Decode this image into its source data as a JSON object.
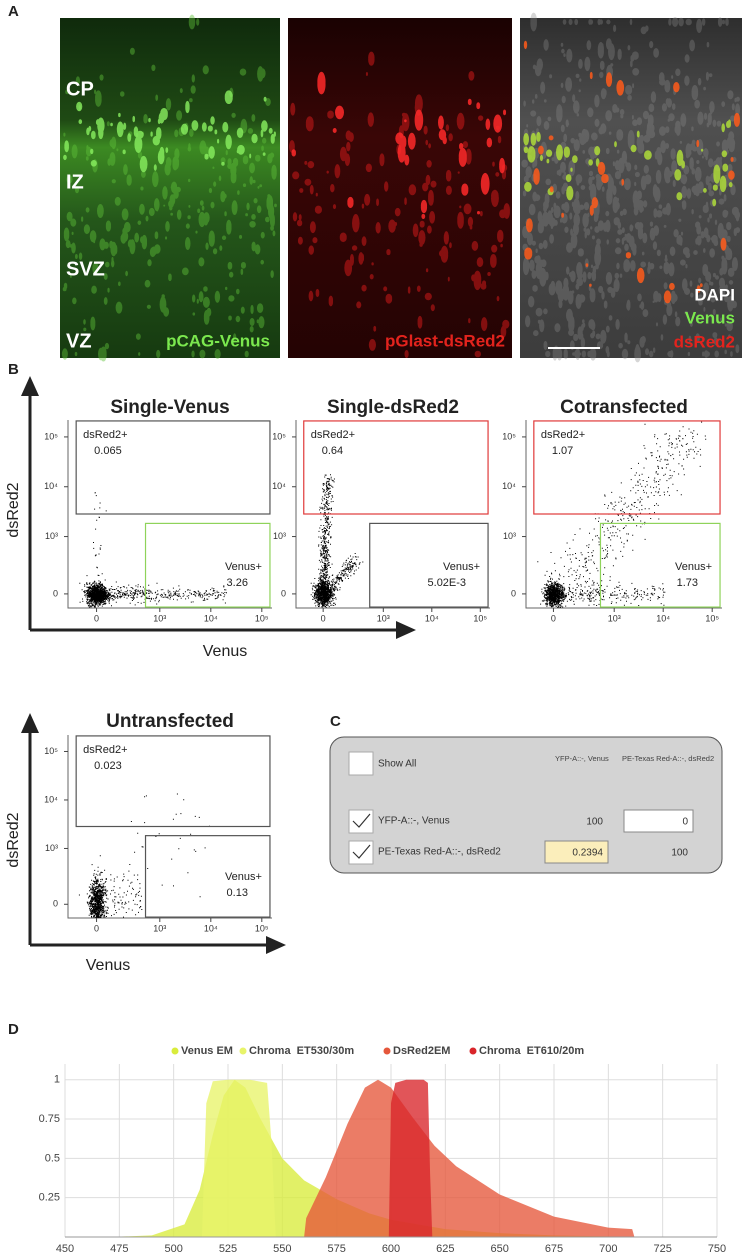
{
  "panel_a": {
    "label": "A",
    "regions": [
      "CP",
      "IZ",
      "SVZ",
      "VZ"
    ],
    "channels": [
      {
        "name": "pCAG-Venus",
        "color": "#7be84e"
      },
      {
        "name": "pGlast-dsRed2",
        "color": "#e3231d"
      }
    ],
    "merge_legend": [
      {
        "name": "DAPI",
        "color": "#ffffff"
      },
      {
        "name": "Venus",
        "color": "#7be84e"
      },
      {
        "name": "dsRed2",
        "color": "#e3231d"
      }
    ]
  },
  "panel_b": {
    "label": "B",
    "x_label": "Venus",
    "y_label": "dsRed2",
    "xticks": [
      0,
      {
        "value": 1000,
        "label": "10³"
      },
      {
        "value": 10000,
        "label": "10⁴"
      },
      {
        "value": 100000,
        "label": "10⁵"
      }
    ],
    "yticks": [
      0,
      {
        "value": 1000,
        "label": "10³"
      },
      {
        "value": 10000,
        "label": "10⁴"
      },
      {
        "value": 100000,
        "label": "10⁵"
      }
    ],
    "plots": [
      {
        "title": "Single-Venus",
        "gates": [
          {
            "name": "dsRed2+",
            "value": 0.065,
            "color": "#555555"
          },
          {
            "name": "Venus+",
            "value": 3.26,
            "color": "#8fd35a"
          }
        ]
      },
      {
        "title": "Single-dsRed2",
        "gates": [
          {
            "name": "dsRed2+",
            "value": 0.64,
            "color": "#e03a3a"
          },
          {
            "name": "Venus+",
            "value": {
              "value": 0.00502,
              "label": "5.02E-3"
            },
            "color": "#555555"
          }
        ]
      },
      {
        "title": "Cotransfected",
        "gates": [
          {
            "name": "dsRed2+",
            "value": 1.07,
            "color": "#e03a3a"
          },
          {
            "name": "Venus+",
            "value": 1.73,
            "color": "#8fd35a"
          }
        ]
      },
      {
        "title": "Untransfected",
        "gates": [
          {
            "name": "dsRed2+",
            "value": 0.023,
            "color": "#555555"
          },
          {
            "name": "Venus+",
            "value": 0.13,
            "color": "#555555"
          }
        ]
      }
    ]
  },
  "panel_c": {
    "label": "C",
    "show_all": "Show All",
    "columns": [
      "YFP-A::-, Venus",
      "PE-Texas Red-A::-, dsRed2"
    ],
    "rows": [
      {
        "name": "YFP-A::-, Venus",
        "values": [
          100,
          0
        ]
      },
      {
        "name": "PE-Texas Red-A::-, dsRed2",
        "values": [
          0.2394,
          100
        ]
      }
    ]
  },
  "chart_data": {
    "type": "area",
    "panel_label": "D",
    "xlim": [
      450,
      750
    ],
    "ylim": [
      0,
      1.1
    ],
    "xticks": [
      450,
      475,
      500,
      525,
      550,
      575,
      600,
      625,
      650,
      675,
      700,
      725,
      750
    ],
    "yticks": [
      0.25,
      0.5,
      0.75,
      1
    ],
    "grid": true,
    "series": [
      {
        "name": "Venus EM",
        "color": "#d9ec3c",
        "x": [
          470,
          490,
          505,
          512,
          518,
          523,
          528,
          533,
          540,
          550,
          560,
          575,
          590,
          600,
          625,
          650,
          675,
          700,
          720
        ],
        "values": [
          0,
          0.01,
          0.08,
          0.3,
          0.65,
          0.9,
          1,
          0.95,
          0.75,
          0.5,
          0.36,
          0.24,
          0.15,
          0.11,
          0.05,
          0.025,
          0.01,
          0.004,
          0
        ]
      },
      {
        "name": "Chroma  ET530/30m",
        "color": "#e8f46a",
        "x": [
          513,
          515,
          518,
          525,
          535,
          543,
          545,
          547
        ],
        "values": [
          0,
          0.85,
          0.99,
          1,
          1,
          0.98,
          0.6,
          0
        ]
      },
      {
        "name": "DsRed2EM",
        "color": "#e5573b",
        "x": [
          560,
          561,
          570,
          580,
          588,
          594,
          600,
          610,
          620,
          630,
          650,
          675,
          700,
          711,
          712
        ],
        "values": [
          0,
          0.12,
          0.38,
          0.72,
          0.95,
          1,
          0.95,
          0.76,
          0.58,
          0.45,
          0.27,
          0.13,
          0.06,
          0.05,
          0
        ]
      },
      {
        "name": "Chroma  ET610/20m",
        "color": "#d9252a",
        "x": [
          599,
          600,
          602,
          607,
          615,
          617,
          618,
          619
        ],
        "values": [
          0,
          0.85,
          0.98,
          1,
          1,
          0.98,
          0.4,
          0
        ]
      }
    ]
  }
}
